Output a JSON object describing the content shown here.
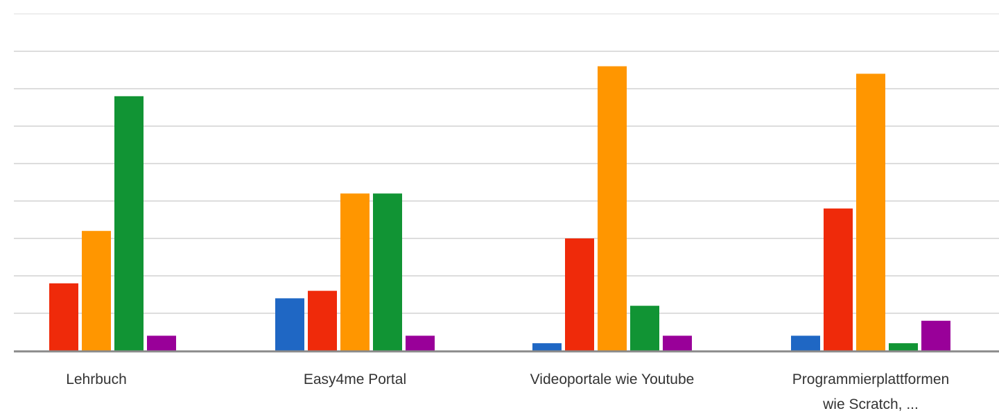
{
  "chart_data": {
    "type": "bar",
    "title": "",
    "xlabel": "",
    "ylabel": "",
    "categories": [
      [
        "Lehrbuch"
      ],
      [
        "Easy4me Portal"
      ],
      [
        "Videoportale wie Youtube"
      ],
      [
        "Programmierplattformen",
        "wie Scratch, ..."
      ]
    ],
    "series": [
      {
        "color": "#1f67c4",
        "values": [
          0,
          14,
          2,
          4
        ]
      },
      {
        "color": "#ef2a0a",
        "values": [
          18,
          16,
          30,
          38
        ]
      },
      {
        "color": "#ff9600",
        "values": [
          32,
          42,
          76,
          74
        ]
      },
      {
        "color": "#119434",
        "values": [
          68,
          42,
          12,
          2
        ]
      },
      {
        "color": "#990099",
        "values": [
          4,
          4,
          4,
          8
        ]
      }
    ],
    "ylim": [
      0,
      80
    ],
    "grid": true,
    "legend": "none"
  }
}
